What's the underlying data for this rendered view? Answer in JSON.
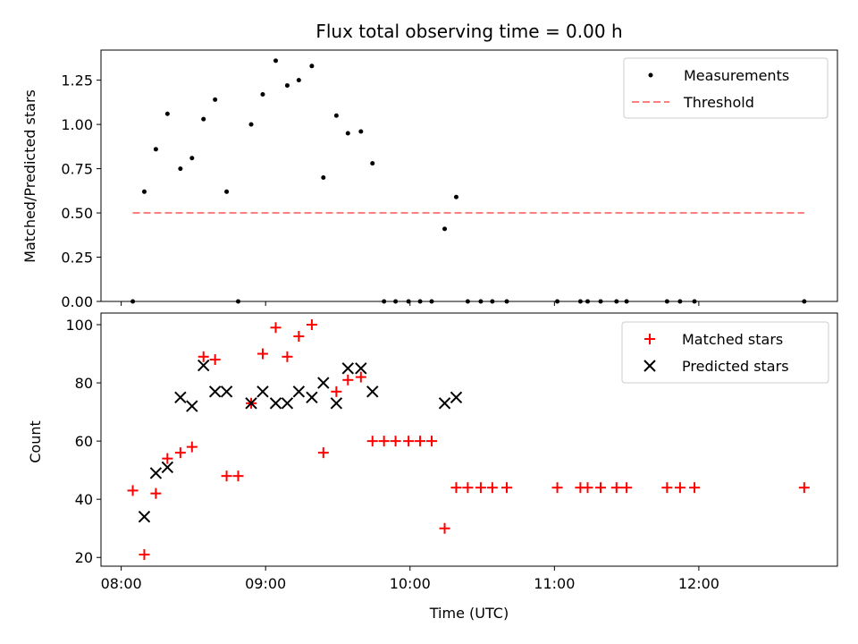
{
  "chart_data": [
    {
      "type": "scatter",
      "title": "Flux total observing time = 0.00 h",
      "xlabel": "",
      "ylabel": "Matched/Predicted stars",
      "xlim": [
        7.86,
        12.96
      ],
      "ylim": [
        0,
        1.42
      ],
      "yticks": [
        0,
        0.25,
        0.5,
        0.75,
        1.0,
        1.25
      ],
      "ytick_labels": [
        "0.00",
        "0.25",
        "0.50",
        "0.75",
        "1.00",
        "1.25"
      ],
      "series": [
        {
          "name": "Measurements",
          "kind": "points",
          "color": "#000000",
          "x": [
            8.08,
            8.16,
            8.24,
            8.32,
            8.41,
            8.49,
            8.57,
            8.65,
            8.73,
            8.81,
            8.9,
            8.98,
            9.07,
            9.15,
            9.23,
            9.32,
            9.4,
            9.49,
            9.57,
            9.66,
            9.74,
            9.82,
            9.9,
            9.99,
            10.07,
            10.15,
            10.24,
            10.32,
            10.4,
            10.49,
            10.57,
            10.67,
            11.02,
            11.18,
            11.23,
            11.32,
            11.43,
            11.5,
            11.78,
            11.87,
            11.97,
            12.73
          ],
          "y": [
            0.0,
            0.62,
            0.86,
            1.06,
            0.75,
            0.81,
            1.03,
            1.14,
            0.62,
            0.0,
            1.0,
            1.17,
            1.36,
            1.22,
            1.25,
            1.33,
            0.7,
            1.05,
            0.95,
            0.96,
            0.78,
            0.0,
            0.0,
            0.0,
            0.0,
            0.0,
            0.41,
            0.59,
            0.0,
            0.0,
            0.0,
            0.0,
            0.0,
            0.0,
            0.0,
            0.0,
            0.0,
            0.0,
            0.0,
            0.0,
            0.0,
            0.0
          ]
        },
        {
          "name": "Threshold",
          "kind": "dashed-line",
          "color": "#ff7f7f",
          "x": [
            8.08,
            12.73
          ],
          "y": [
            0.5,
            0.5
          ]
        }
      ],
      "legend": [
        "Measurements",
        "Threshold"
      ],
      "legend_position": "top-right"
    },
    {
      "type": "scatter",
      "title": "",
      "xlabel": "Time (UTC)",
      "ylabel": "Count",
      "xlim": [
        7.86,
        12.96
      ],
      "ylim": [
        17,
        104
      ],
      "yticks": [
        20,
        40,
        60,
        80,
        100
      ],
      "ytick_labels": [
        "20",
        "40",
        "60",
        "80",
        "100"
      ],
      "xticks": [
        8,
        9,
        10,
        11,
        12
      ],
      "xtick_labels": [
        "08:00",
        "09:00",
        "10:00",
        "11:00",
        "12:00"
      ],
      "series": [
        {
          "name": "Matched stars",
          "kind": "plus",
          "color": "#ff0000",
          "x": [
            8.08,
            8.16,
            8.24,
            8.32,
            8.41,
            8.49,
            8.57,
            8.65,
            8.73,
            8.81,
            8.9,
            8.98,
            9.07,
            9.15,
            9.23,
            9.32,
            9.4,
            9.49,
            9.57,
            9.66,
            9.74,
            9.82,
            9.9,
            9.99,
            10.07,
            10.15,
            10.24,
            10.32,
            10.4,
            10.49,
            10.57,
            10.67,
            11.02,
            11.18,
            11.23,
            11.32,
            11.43,
            11.5,
            11.78,
            11.87,
            11.97,
            12.73
          ],
          "y": [
            43,
            21,
            42,
            54,
            56,
            58,
            89,
            88,
            48,
            48,
            73,
            90,
            99,
            89,
            96,
            100,
            56,
            77,
            81,
            82,
            60,
            60,
            60,
            60,
            60,
            60,
            30,
            44,
            44,
            44,
            44,
            44,
            44,
            44,
            44,
            44,
            44,
            44,
            44,
            44,
            44,
            44
          ]
        },
        {
          "name": "Predicted stars",
          "kind": "x",
          "color": "#000000",
          "x": [
            8.16,
            8.24,
            8.32,
            8.41,
            8.49,
            8.57,
            8.65,
            8.73,
            8.9,
            8.98,
            9.07,
            9.15,
            9.23,
            9.32,
            9.4,
            9.49,
            9.57,
            9.66,
            9.74,
            10.24,
            10.32
          ],
          "y": [
            34,
            49,
            51,
            75,
            72,
            86,
            77,
            77,
            73,
            77,
            73,
            73,
            77,
            75,
            80,
            73,
            85,
            85,
            77,
            73,
            75
          ]
        }
      ],
      "legend": [
        "Matched stars",
        "Predicted stars"
      ],
      "legend_position": "top-right"
    }
  ]
}
